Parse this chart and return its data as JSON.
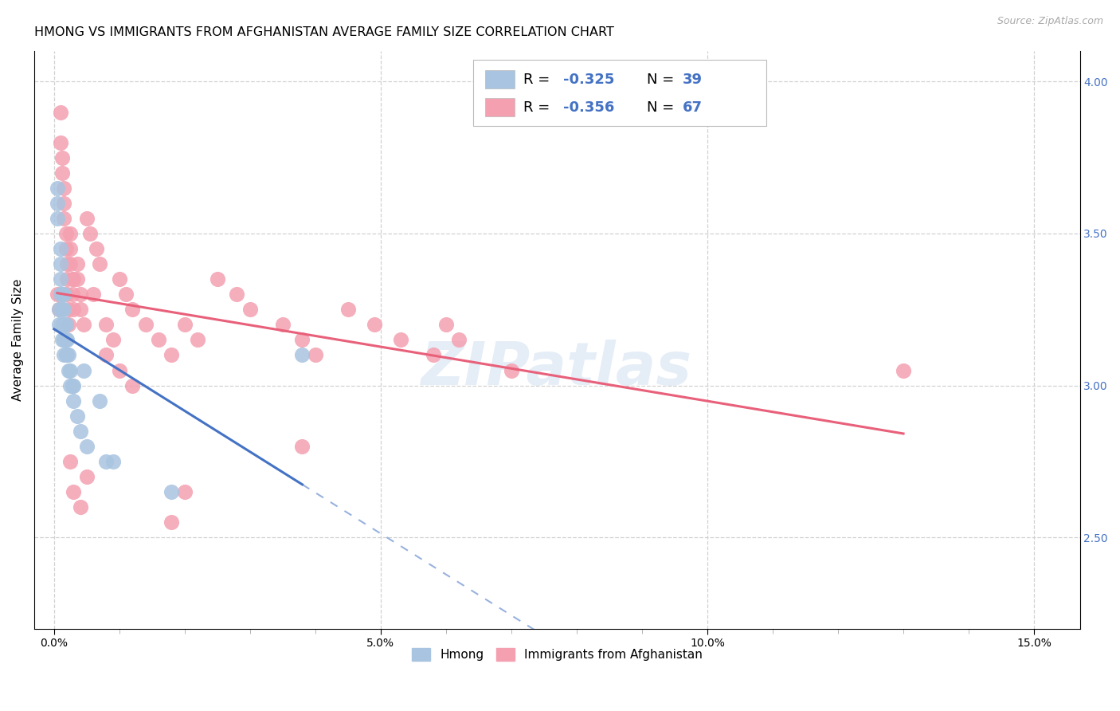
{
  "title": "HMONG VS IMMIGRANTS FROM AFGHANISTAN AVERAGE FAMILY SIZE CORRELATION CHART",
  "source": "Source: ZipAtlas.com",
  "ylabel": "Average Family Size",
  "xlabel_tick_vals": [
    0.0,
    0.05,
    0.1,
    0.15
  ],
  "xlabel_tick_labels": [
    "0.0%",
    "5.0%",
    "10.0%",
    "15.0%"
  ],
  "ylim": [
    2.2,
    4.1
  ],
  "xlim": [
    -0.003,
    0.157
  ],
  "yticks": [
    2.5,
    3.0,
    3.5,
    4.0
  ],
  "grid_color": "#cccccc",
  "watermark": "ZIPatlas",
  "hmong_color": "#a8c4e0",
  "hmong_line_color": "#4472c4",
  "afghan_color": "#f4a0b0",
  "afghan_line_color": "#e8607a",
  "blue_text_color": "#4472c4",
  "title_fontsize": 11.5,
  "axis_label_fontsize": 11,
  "tick_fontsize": 10,
  "legend_fontsize": 12,
  "hmong_x": [
    0.0005,
    0.0005,
    0.0005,
    0.0008,
    0.0008,
    0.001,
    0.001,
    0.001,
    0.001,
    0.0012,
    0.0012,
    0.0012,
    0.0012,
    0.0015,
    0.0015,
    0.0015,
    0.0015,
    0.0015,
    0.0018,
    0.0018,
    0.0018,
    0.002,
    0.002,
    0.0022,
    0.0022,
    0.0025,
    0.0025,
    0.0028,
    0.003,
    0.003,
    0.0035,
    0.004,
    0.0045,
    0.005,
    0.007,
    0.008,
    0.009,
    0.018,
    0.038
  ],
  "hmong_y": [
    3.55,
    3.6,
    3.65,
    3.2,
    3.25,
    3.3,
    3.35,
    3.4,
    3.45,
    3.15,
    3.2,
    3.25,
    3.3,
    3.1,
    3.15,
    3.2,
    3.25,
    3.3,
    3.1,
    3.15,
    3.2,
    3.1,
    3.15,
    3.05,
    3.1,
    3.0,
    3.05,
    3.0,
    2.95,
    3.0,
    2.9,
    2.85,
    3.05,
    2.8,
    2.95,
    2.75,
    2.75,
    2.65,
    3.1
  ],
  "afghan_x": [
    0.0005,
    0.0008,
    0.001,
    0.001,
    0.0012,
    0.0012,
    0.0015,
    0.0015,
    0.0015,
    0.0018,
    0.0018,
    0.002,
    0.002,
    0.002,
    0.0022,
    0.0022,
    0.0025,
    0.0025,
    0.0025,
    0.0028,
    0.0028,
    0.003,
    0.003,
    0.0035,
    0.0035,
    0.004,
    0.004,
    0.0045,
    0.005,
    0.0055,
    0.006,
    0.0065,
    0.007,
    0.008,
    0.009,
    0.01,
    0.011,
    0.012,
    0.014,
    0.016,
    0.018,
    0.02,
    0.022,
    0.025,
    0.028,
    0.03,
    0.035,
    0.038,
    0.04,
    0.045,
    0.049,
    0.053,
    0.058,
    0.06,
    0.062,
    0.07,
    0.008,
    0.01,
    0.012,
    0.005,
    0.003,
    0.004,
    0.0025,
    0.018,
    0.02,
    0.13,
    0.038
  ],
  "afghan_y": [
    3.3,
    3.25,
    3.9,
    3.8,
    3.75,
    3.7,
    3.65,
    3.6,
    3.55,
    3.5,
    3.45,
    3.4,
    3.35,
    3.3,
    3.25,
    3.2,
    3.5,
    3.45,
    3.4,
    3.35,
    3.3,
    3.35,
    3.25,
    3.4,
    3.35,
    3.3,
    3.25,
    3.2,
    3.55,
    3.5,
    3.3,
    3.45,
    3.4,
    3.2,
    3.15,
    3.35,
    3.3,
    3.25,
    3.2,
    3.15,
    3.1,
    3.2,
    3.15,
    3.35,
    3.3,
    3.25,
    3.2,
    3.15,
    3.1,
    3.25,
    3.2,
    3.15,
    3.1,
    3.2,
    3.15,
    3.05,
    3.1,
    3.05,
    3.0,
    2.7,
    2.65,
    2.6,
    2.75,
    2.55,
    2.65,
    3.05,
    2.8
  ]
}
